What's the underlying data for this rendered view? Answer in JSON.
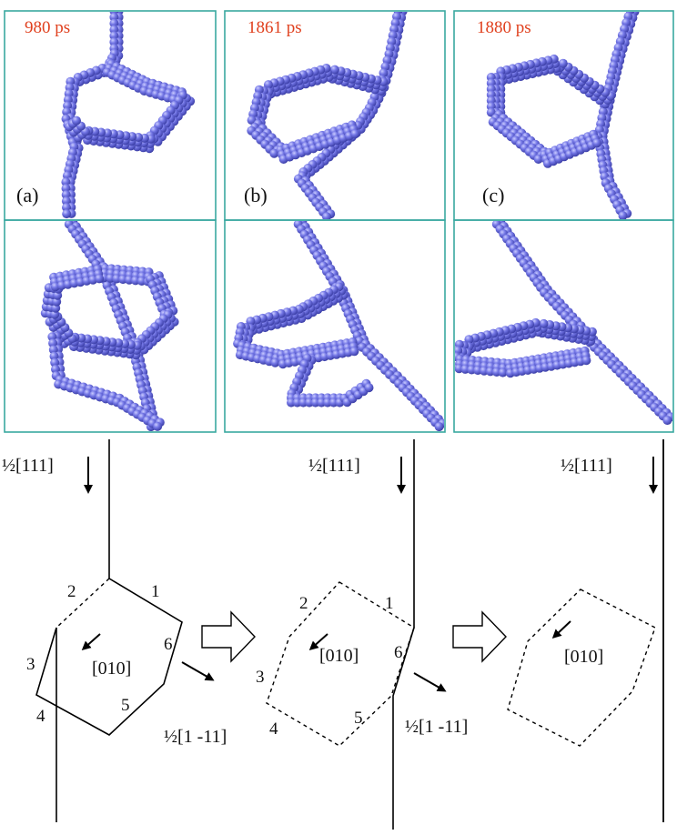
{
  "panels": [
    {
      "time": "980 ps",
      "label": "(a)"
    },
    {
      "time": "1861 ps",
      "label": "(b)"
    },
    {
      "time": "1880 ps",
      "label": "(c)"
    }
  ],
  "diagrams": [
    {
      "burgers_top": "½[111]",
      "loop_burgers": "[010]",
      "glide": "½[1 -11]",
      "segments": [
        "1",
        "2",
        "3",
        "4",
        "5",
        "6"
      ]
    },
    {
      "burgers_top": "½[111]",
      "loop_burgers": "[010]",
      "glide": "½[1 -11]",
      "segments": [
        "1",
        "2",
        "3",
        "4",
        "5",
        "6"
      ]
    },
    {
      "burgers_top": "½[111]",
      "loop_burgers": "[010]"
    }
  ],
  "colors": {
    "panel_border": "#3aa8a0",
    "atom": "#6b6ee0",
    "time_label": "#e0401e"
  },
  "icons": [
    "hollow-arrow-right-icon",
    "hollow-arrow-right-icon"
  ]
}
